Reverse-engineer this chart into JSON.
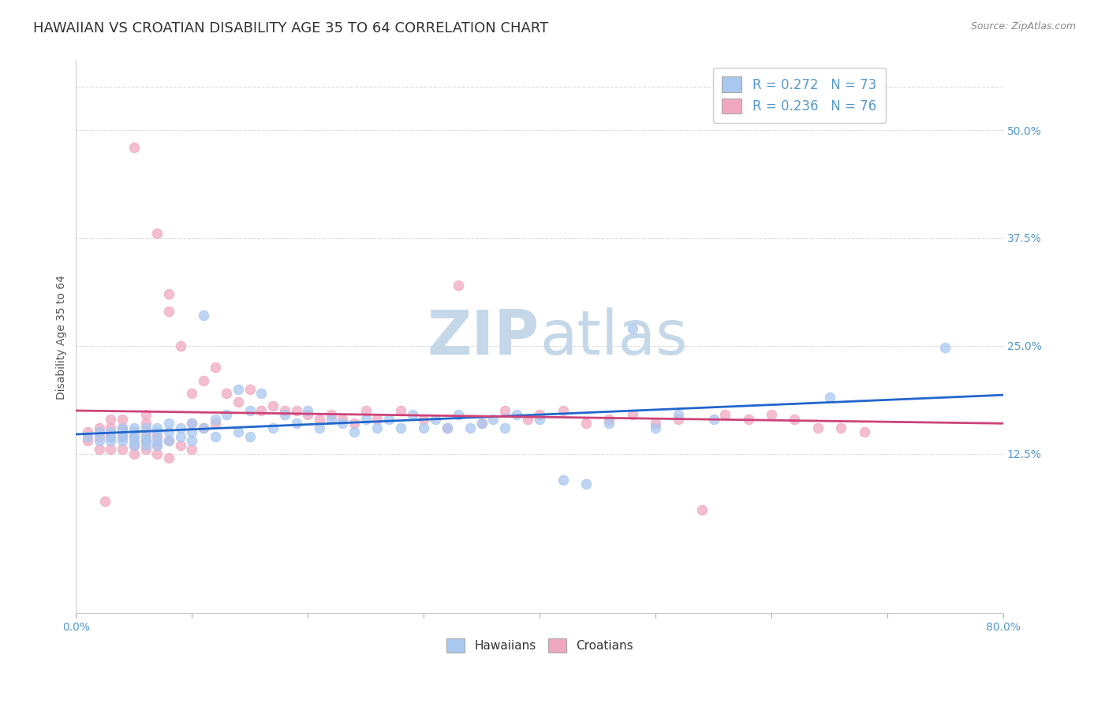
{
  "title": "HAWAIIAN VS CROATIAN DISABILITY AGE 35 TO 64 CORRELATION CHART",
  "source": "Source: ZipAtlas.com",
  "ylabel": "Disability Age 35 to 64",
  "ytick_labels": [
    "12.5%",
    "25.0%",
    "37.5%",
    "50.0%"
  ],
  "ytick_values": [
    0.125,
    0.25,
    0.375,
    0.5
  ],
  "xlim": [
    0.0,
    0.8
  ],
  "ylim": [
    -0.06,
    0.58
  ],
  "legend_hawaiians_R": "0.272",
  "legend_hawaiians_N": "73",
  "legend_croatians_R": "0.236",
  "legend_croatians_N": "76",
  "hawaiian_color": "#a8c8f0",
  "croatian_color": "#f0a8c0",
  "hawaiian_line_color": "#2266cc",
  "croatian_line_color": "#cc4477",
  "grid_color": "#dddddd",
  "background_color": "#ffffff",
  "title_fontsize": 13,
  "axis_label_fontsize": 10,
  "tick_fontsize": 10,
  "source_fontsize": 9,
  "hawaiians_x": [
    0.01,
    0.02,
    0.02,
    0.03,
    0.03,
    0.03,
    0.04,
    0.04,
    0.04,
    0.04,
    0.05,
    0.05,
    0.05,
    0.05,
    0.05,
    0.06,
    0.06,
    0.06,
    0.06,
    0.07,
    0.07,
    0.07,
    0.07,
    0.08,
    0.08,
    0.08,
    0.09,
    0.09,
    0.1,
    0.1,
    0.1,
    0.11,
    0.11,
    0.12,
    0.12,
    0.13,
    0.14,
    0.14,
    0.15,
    0.15,
    0.16,
    0.17,
    0.18,
    0.19,
    0.2,
    0.21,
    0.22,
    0.23,
    0.24,
    0.25,
    0.26,
    0.27,
    0.28,
    0.29,
    0.3,
    0.31,
    0.32,
    0.33,
    0.34,
    0.35,
    0.36,
    0.37,
    0.38,
    0.4,
    0.42,
    0.44,
    0.46,
    0.48,
    0.5,
    0.52,
    0.55,
    0.65,
    0.75
  ],
  "hawaiians_y": [
    0.145,
    0.14,
    0.15,
    0.14,
    0.145,
    0.15,
    0.14,
    0.145,
    0.15,
    0.155,
    0.135,
    0.14,
    0.145,
    0.15,
    0.155,
    0.135,
    0.14,
    0.145,
    0.155,
    0.135,
    0.14,
    0.15,
    0.155,
    0.14,
    0.15,
    0.16,
    0.145,
    0.155,
    0.14,
    0.15,
    0.16,
    0.285,
    0.155,
    0.145,
    0.165,
    0.17,
    0.15,
    0.2,
    0.145,
    0.175,
    0.195,
    0.155,
    0.17,
    0.16,
    0.175,
    0.155,
    0.165,
    0.16,
    0.15,
    0.165,
    0.155,
    0.165,
    0.155,
    0.17,
    0.155,
    0.165,
    0.155,
    0.17,
    0.155,
    0.16,
    0.165,
    0.155,
    0.17,
    0.165,
    0.095,
    0.09,
    0.16,
    0.27,
    0.155,
    0.17,
    0.165,
    0.19,
    0.248
  ],
  "croatians_x": [
    0.01,
    0.01,
    0.02,
    0.02,
    0.02,
    0.03,
    0.03,
    0.03,
    0.03,
    0.04,
    0.04,
    0.04,
    0.04,
    0.05,
    0.05,
    0.05,
    0.05,
    0.06,
    0.06,
    0.06,
    0.06,
    0.06,
    0.07,
    0.07,
    0.07,
    0.07,
    0.08,
    0.08,
    0.08,
    0.08,
    0.09,
    0.09,
    0.1,
    0.1,
    0.1,
    0.11,
    0.11,
    0.12,
    0.12,
    0.13,
    0.14,
    0.15,
    0.16,
    0.17,
    0.18,
    0.19,
    0.2,
    0.21,
    0.22,
    0.23,
    0.24,
    0.25,
    0.26,
    0.28,
    0.3,
    0.32,
    0.33,
    0.35,
    0.37,
    0.39,
    0.4,
    0.42,
    0.44,
    0.46,
    0.48,
    0.5,
    0.52,
    0.54,
    0.56,
    0.58,
    0.6,
    0.62,
    0.64,
    0.66,
    0.68,
    0.025
  ],
  "croatians_y": [
    0.14,
    0.15,
    0.13,
    0.145,
    0.155,
    0.13,
    0.145,
    0.155,
    0.165,
    0.13,
    0.145,
    0.155,
    0.165,
    0.125,
    0.135,
    0.145,
    0.48,
    0.13,
    0.14,
    0.15,
    0.16,
    0.17,
    0.125,
    0.135,
    0.145,
    0.38,
    0.12,
    0.14,
    0.29,
    0.31,
    0.135,
    0.25,
    0.13,
    0.16,
    0.195,
    0.155,
    0.21,
    0.16,
    0.225,
    0.195,
    0.185,
    0.2,
    0.175,
    0.18,
    0.175,
    0.175,
    0.17,
    0.165,
    0.17,
    0.165,
    0.16,
    0.175,
    0.165,
    0.175,
    0.165,
    0.155,
    0.32,
    0.16,
    0.175,
    0.165,
    0.17,
    0.175,
    0.16,
    0.165,
    0.17,
    0.16,
    0.165,
    0.06,
    0.17,
    0.165,
    0.17,
    0.165,
    0.155,
    0.155,
    0.15,
    0.07
  ]
}
